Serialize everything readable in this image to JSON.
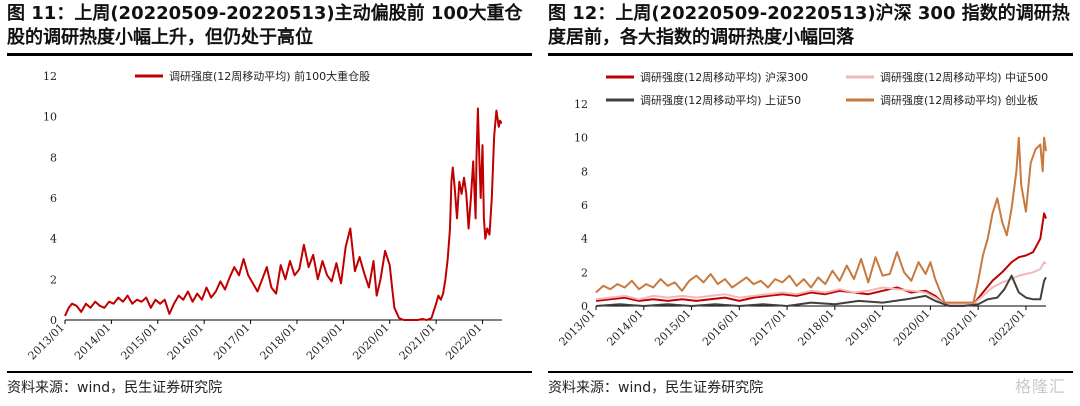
{
  "left": {
    "title": "图 11：上周(20220509-20220513)主动偏股前 100大重仓股的调研热度小幅上升，但仍处于高位",
    "source": "资料来源：wind，民生证券研究院"
  },
  "right": {
    "title": "图 12：上周(20220509-20220513)沪深 300 指数的调研热度居前，各大指数的调研热度小幅回落",
    "source": "资料来源：wind，民生证券研究院"
  },
  "watermark": "格隆汇",
  "chart_data": [
    {
      "type": "line",
      "xlim": [
        2013.0,
        2022.42
      ],
      "ylim": [
        0,
        12
      ],
      "yticks": [
        0,
        2,
        4,
        6,
        8,
        10,
        12
      ],
      "xticks": [
        "2013/01",
        "2014/01",
        "2015/01",
        "2016/01",
        "2017/01",
        "2018/01",
        "2019/01",
        "2020/01",
        "2021/01",
        "2022/01"
      ],
      "legend_position": "top",
      "series": [
        {
          "name": "调研强度(12周移动平均) 前100大重仓股",
          "color": "#c00000",
          "x": [
            2013.0,
            2013.08,
            2013.15,
            2013.25,
            2013.35,
            2013.45,
            2013.55,
            2013.65,
            2013.75,
            2013.85,
            2013.95,
            2014.05,
            2014.15,
            2014.25,
            2014.35,
            2014.45,
            2014.55,
            2014.65,
            2014.75,
            2014.85,
            2014.95,
            2015.05,
            2015.15,
            2015.25,
            2015.35,
            2015.45,
            2015.55,
            2015.65,
            2015.75,
            2015.85,
            2015.95,
            2016.05,
            2016.15,
            2016.25,
            2016.35,
            2016.45,
            2016.55,
            2016.65,
            2016.75,
            2016.85,
            2016.95,
            2017.05,
            2017.15,
            2017.25,
            2017.35,
            2017.45,
            2017.55,
            2017.65,
            2017.75,
            2017.85,
            2017.95,
            2018.05,
            2018.15,
            2018.25,
            2018.35,
            2018.45,
            2018.55,
            2018.65,
            2018.75,
            2018.85,
            2018.95,
            2019.05,
            2019.15,
            2019.25,
            2019.35,
            2019.45,
            2019.55,
            2019.65,
            2019.72,
            2019.8,
            2019.9,
            2020.0,
            2020.05,
            2020.1,
            2020.2,
            2020.3,
            2020.4,
            2020.5,
            2020.6,
            2020.7,
            2020.8,
            2020.9,
            2021.0,
            2021.05,
            2021.1,
            2021.15,
            2021.2,
            2021.25,
            2021.3,
            2021.33,
            2021.36,
            2021.4,
            2021.45,
            2021.5,
            2021.55,
            2021.6,
            2021.65,
            2021.7,
            2021.75,
            2021.8,
            2021.85,
            2021.87,
            2021.9,
            2021.93,
            2021.96,
            2022.0,
            2022.03,
            2022.06,
            2022.1,
            2022.15,
            2022.2,
            2022.25,
            2022.3,
            2022.35,
            2022.38,
            2022.4,
            2022.42
          ],
          "values": [
            0.2,
            0.6,
            0.8,
            0.7,
            0.4,
            0.8,
            0.6,
            0.9,
            0.7,
            0.6,
            0.9,
            0.8,
            1.1,
            0.9,
            1.2,
            0.8,
            1.0,
            0.9,
            1.1,
            0.6,
            1.0,
            0.8,
            1.0,
            0.3,
            0.8,
            1.2,
            1.0,
            1.4,
            0.9,
            1.3,
            1.0,
            1.6,
            1.1,
            1.4,
            1.9,
            1.5,
            2.1,
            2.6,
            2.2,
            3.0,
            2.2,
            1.8,
            1.4,
            2.0,
            2.6,
            1.6,
            1.3,
            2.7,
            2.0,
            2.9,
            2.2,
            2.5,
            3.7,
            2.6,
            3.2,
            2.0,
            2.9,
            2.2,
            1.9,
            2.8,
            1.8,
            3.6,
            4.5,
            2.4,
            3.1,
            2.3,
            1.6,
            2.9,
            1.2,
            2.0,
            3.4,
            2.7,
            1.6,
            0.6,
            0.1,
            0.0,
            0.0,
            0.0,
            0.0,
            0.05,
            0.0,
            0.1,
            0.8,
            1.2,
            1.0,
            1.3,
            2.0,
            3.0,
            4.5,
            6.8,
            7.5,
            6.5,
            5.0,
            6.8,
            6.2,
            7.0,
            6.2,
            4.5,
            6.0,
            7.8,
            5.0,
            8.0,
            10.4,
            8.0,
            6.0,
            8.6,
            5.0,
            4.0,
            4.5,
            4.2,
            6.0,
            9.0,
            10.3,
            9.5,
            9.8,
            9.7,
            9.7
          ]
        }
      ]
    },
    {
      "type": "line",
      "xlim": [
        2013.0,
        2022.42
      ],
      "ylim": [
        0,
        12
      ],
      "yticks": [
        0,
        2,
        4,
        6,
        8,
        10,
        12
      ],
      "xticks": [
        "2013/01",
        "2014/01",
        "2015/01",
        "2016/01",
        "2017/01",
        "2018/01",
        "2019/01",
        "2020/01",
        "2021/01",
        "2022/01"
      ],
      "legend_position": "top",
      "series": [
        {
          "name": "调研强度(12周移动平均) 沪深300",
          "color": "#c00000",
          "x": [
            2013.0,
            2013.3,
            2013.6,
            2013.9,
            2014.2,
            2014.5,
            2014.8,
            2015.1,
            2015.4,
            2015.7,
            2016.0,
            2016.3,
            2016.6,
            2016.9,
            2017.2,
            2017.5,
            2017.8,
            2018.1,
            2018.4,
            2018.7,
            2019.0,
            2019.3,
            2019.6,
            2019.9,
            2020.1,
            2020.3,
            2020.6,
            2020.9,
            2021.1,
            2021.3,
            2021.5,
            2021.7,
            2021.85,
            2022.0,
            2022.15,
            2022.3,
            2022.38,
            2022.42
          ],
          "values": [
            0.3,
            0.4,
            0.5,
            0.3,
            0.4,
            0.3,
            0.4,
            0.3,
            0.4,
            0.5,
            0.3,
            0.5,
            0.6,
            0.7,
            0.6,
            0.8,
            0.7,
            0.9,
            0.8,
            0.7,
            0.9,
            1.1,
            0.8,
            0.9,
            0.6,
            0.1,
            0.1,
            0.1,
            0.8,
            1.5,
            2.0,
            2.6,
            2.9,
            3.0,
            3.2,
            4.0,
            5.5,
            5.2
          ]
        },
        {
          "name": "调研强度(12周移动平均) 中证500",
          "color": "#f2b8b8",
          "x": [
            2013.0,
            2013.3,
            2013.6,
            2013.9,
            2014.2,
            2014.5,
            2014.8,
            2015.1,
            2015.4,
            2015.7,
            2016.0,
            2016.3,
            2016.6,
            2016.9,
            2017.2,
            2017.5,
            2017.8,
            2018.1,
            2018.4,
            2018.7,
            2019.0,
            2019.3,
            2019.6,
            2019.9,
            2020.1,
            2020.3,
            2020.6,
            2020.9,
            2021.1,
            2021.3,
            2021.5,
            2021.7,
            2021.85,
            2022.0,
            2022.15,
            2022.3,
            2022.38,
            2022.42
          ],
          "values": [
            0.4,
            0.5,
            0.6,
            0.4,
            0.6,
            0.5,
            0.6,
            0.5,
            0.6,
            0.7,
            0.5,
            0.6,
            0.7,
            0.8,
            0.7,
            0.9,
            0.8,
            1.0,
            0.8,
            0.9,
            1.1,
            1.0,
            0.9,
            0.8,
            0.5,
            0.1,
            0.1,
            0.1,
            0.6,
            1.1,
            1.4,
            1.6,
            1.8,
            1.9,
            2.0,
            2.2,
            2.6,
            2.5
          ]
        },
        {
          "name": "调研强度(12周移动平均) 上证50",
          "color": "#404040",
          "x": [
            2013.0,
            2013.5,
            2014.0,
            2014.5,
            2015.0,
            2015.5,
            2016.0,
            2016.5,
            2017.0,
            2017.5,
            2018.0,
            2018.5,
            2019.0,
            2019.5,
            2019.9,
            2020.1,
            2020.4,
            2020.7,
            2021.0,
            2021.2,
            2021.4,
            2021.55,
            2021.7,
            2021.85,
            2022.0,
            2022.15,
            2022.3,
            2022.38,
            2022.42
          ],
          "values": [
            0.0,
            0.1,
            0.0,
            0.1,
            0.0,
            0.1,
            0.0,
            0.1,
            0.0,
            0.2,
            0.1,
            0.3,
            0.2,
            0.4,
            0.6,
            0.3,
            0.0,
            0.0,
            0.1,
            0.4,
            0.5,
            1.0,
            1.8,
            0.8,
            0.5,
            0.4,
            0.4,
            1.5,
            1.7
          ]
        },
        {
          "name": "调研强度(12周移动平均) 创业板",
          "color": "#c87a3e",
          "x": [
            2013.0,
            2013.15,
            2013.3,
            2013.45,
            2013.6,
            2013.75,
            2013.9,
            2014.05,
            2014.2,
            2014.35,
            2014.5,
            2014.65,
            2014.8,
            2014.95,
            2015.1,
            2015.25,
            2015.4,
            2015.55,
            2015.7,
            2015.85,
            2016.0,
            2016.15,
            2016.3,
            2016.45,
            2016.6,
            2016.75,
            2016.9,
            2017.05,
            2017.2,
            2017.35,
            2017.5,
            2017.65,
            2017.8,
            2017.95,
            2018.1,
            2018.25,
            2018.4,
            2018.55,
            2018.7,
            2018.85,
            2019.0,
            2019.15,
            2019.3,
            2019.45,
            2019.6,
            2019.75,
            2019.9,
            2020.0,
            2020.1,
            2020.3,
            2020.6,
            2020.9,
            2021.0,
            2021.1,
            2021.2,
            2021.3,
            2021.4,
            2021.5,
            2021.6,
            2021.7,
            2021.8,
            2021.85,
            2021.9,
            2022.0,
            2022.1,
            2022.2,
            2022.3,
            2022.35,
            2022.38,
            2022.42
          ],
          "values": [
            0.8,
            1.2,
            1.0,
            1.3,
            1.1,
            1.5,
            1.0,
            1.3,
            1.1,
            1.6,
            1.2,
            1.4,
            0.9,
            1.5,
            1.8,
            1.4,
            1.9,
            1.3,
            1.6,
            1.1,
            1.4,
            1.7,
            1.3,
            1.5,
            1.1,
            1.6,
            1.4,
            1.8,
            1.2,
            1.6,
            1.1,
            1.7,
            1.3,
            2.1,
            1.5,
            2.4,
            1.6,
            2.8,
            1.4,
            2.9,
            1.8,
            1.9,
            3.2,
            2.0,
            1.5,
            2.6,
            1.9,
            2.6,
            1.6,
            0.2,
            0.2,
            0.2,
            1.5,
            3.0,
            4.0,
            5.5,
            6.4,
            5.0,
            4.2,
            5.8,
            8.0,
            10.0,
            7.2,
            5.6,
            8.5,
            9.3,
            9.6,
            8.0,
            10.0,
            9.2
          ]
        }
      ]
    }
  ]
}
